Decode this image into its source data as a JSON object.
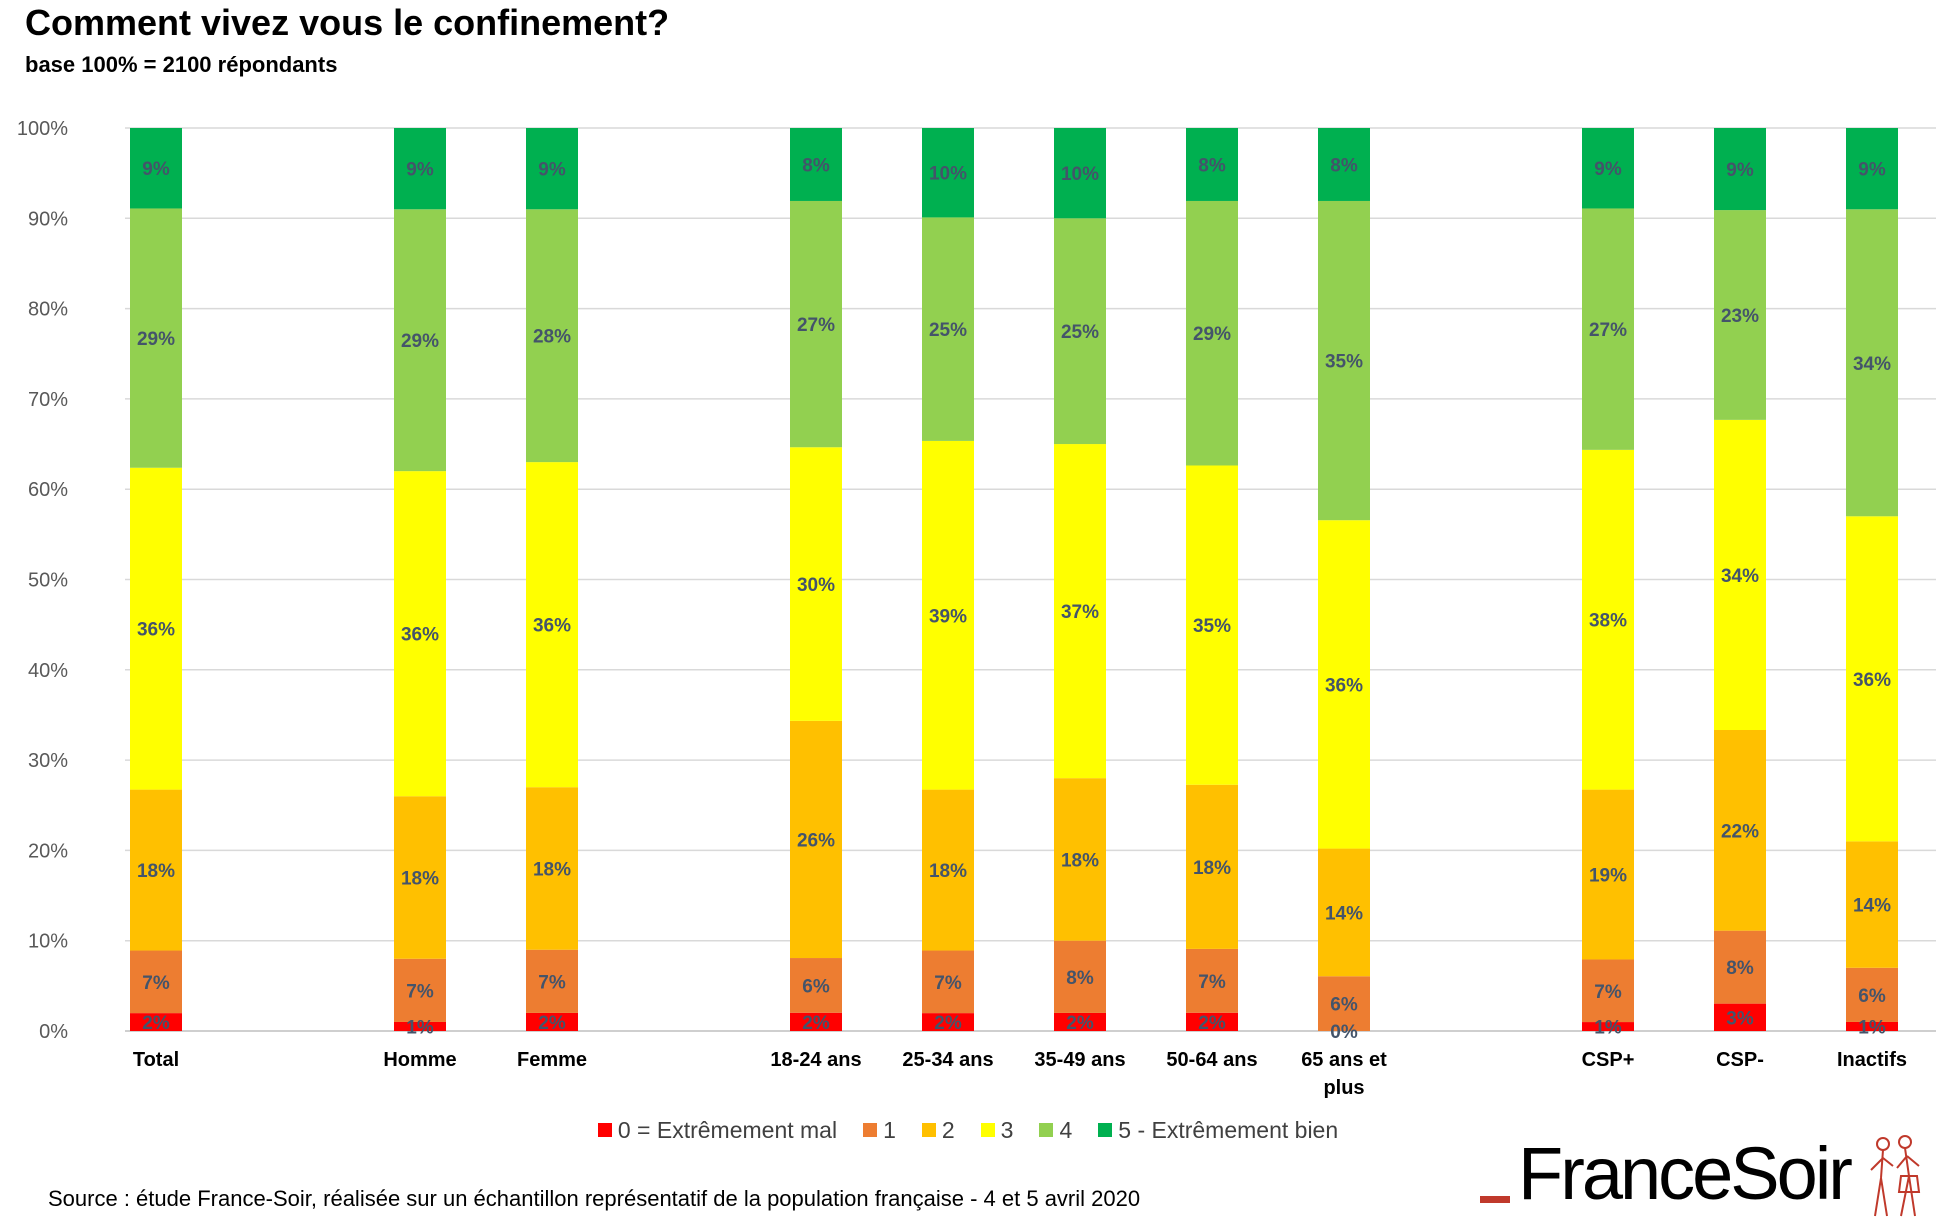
{
  "title": "Comment vivez vous le confinement?",
  "subtitle": "base 100% = 2100 répondants",
  "source": "Source : étude France-Soir, réalisée sur un échantillon représentatif de la population française - 4 et 5 avril 2020",
  "logo_text": "FranceSoir",
  "chart_data": {
    "type": "bar",
    "stacked": true,
    "ylim": [
      0,
      100
    ],
    "yticks": [
      "0%",
      "10%",
      "20%",
      "30%",
      "40%",
      "50%",
      "60%",
      "70%",
      "80%",
      "90%",
      "100%"
    ],
    "grid": true,
    "legend_position": "bottom",
    "categories": [
      "Total",
      "Homme",
      "Femme",
      "18-24 ans",
      "25-34 ans",
      "35-49 ans",
      "50-64 ans",
      "65 ans et plus",
      "CSP+",
      "CSP-",
      "Inactifs"
    ],
    "series": [
      {
        "name": "0 = Extrêmement mal",
        "color": "#ff0000",
        "values": [
          2,
          1,
          2,
          2,
          2,
          2,
          2,
          0,
          1,
          3,
          1
        ],
        "labels": [
          "2%",
          "1%",
          "2%",
          "2%",
          "2%",
          "2%",
          "2%",
          "0%",
          "1%",
          "3%",
          "1%"
        ]
      },
      {
        "name": "1",
        "color": "#ed7d31",
        "values": [
          7,
          7,
          7,
          6,
          7,
          8,
          7,
          6,
          7,
          8,
          6
        ],
        "labels": [
          "7%",
          "7%",
          "7%",
          "6%",
          "7%",
          "8%",
          "7%",
          "6%",
          "7%",
          "8%",
          "6%"
        ]
      },
      {
        "name": "2",
        "color": "#ffc000",
        "values": [
          18,
          18,
          18,
          26,
          18,
          18,
          18,
          14,
          19,
          22,
          14
        ],
        "labels": [
          "18%",
          "18%",
          "18%",
          "26%",
          "18%",
          "18%",
          "18%",
          "14%",
          "19%",
          "22%",
          "14%"
        ]
      },
      {
        "name": "3",
        "color": "#ffff00",
        "values": [
          36,
          36,
          36,
          30,
          39,
          37,
          35,
          36,
          38,
          34,
          36
        ],
        "labels": [
          "36%",
          "36%",
          "36%",
          "30%",
          "39%",
          "37%",
          "35%",
          "36%",
          "38%",
          "34%",
          "36%"
        ]
      },
      {
        "name": "4",
        "color": "#92d050",
        "values": [
          29,
          29,
          28,
          27,
          25,
          25,
          29,
          35,
          27,
          23,
          34
        ],
        "labels": [
          "29%",
          "29%",
          "28%",
          "27%",
          "25%",
          "25%",
          "29%",
          "35%",
          "27%",
          "23%",
          "34%"
        ]
      },
      {
        "name": "5 - Extrêmement bien",
        "color": "#00b050",
        "values": [
          9,
          9,
          9,
          8,
          10,
          10,
          8,
          8,
          9,
          9,
          9
        ],
        "labels": [
          "9%",
          "9%",
          "9%",
          "8%",
          "10%",
          "10%",
          "8%",
          "8%",
          "9%",
          "9%",
          "9%"
        ]
      }
    ]
  }
}
